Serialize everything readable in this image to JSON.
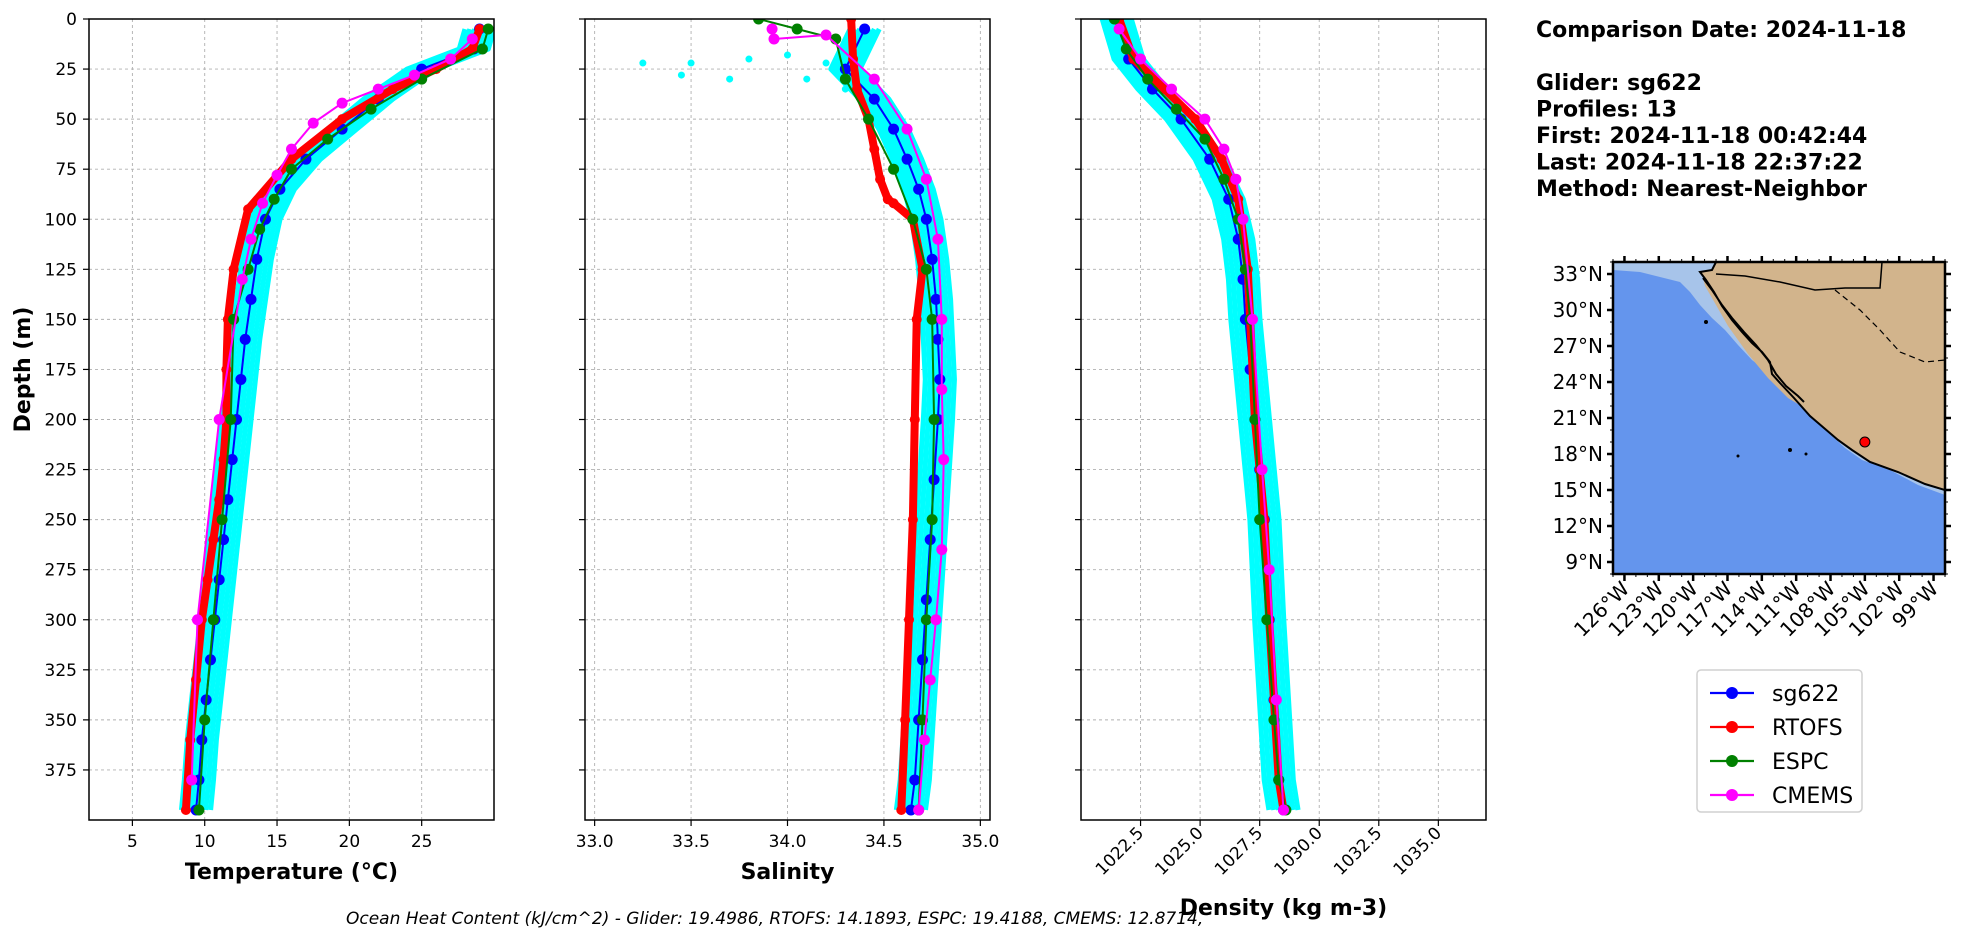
{
  "chart_data": [
    {
      "type": "line",
      "xlabel": "Temperature (°C)",
      "ylabel": "Depth (m)",
      "xlim": [
        2,
        30
      ],
      "ylim": [
        400,
        0
      ],
      "xticks": [
        5,
        10,
        15,
        20,
        25
      ],
      "yticks": [
        0,
        25,
        50,
        75,
        100,
        125,
        150,
        175,
        200,
        225,
        250,
        275,
        300,
        325,
        350,
        375
      ],
      "grid": true,
      "series": [
        {
          "name": "sg622",
          "color": "#0000ff",
          "x": [
            29.0,
            28.6,
            25.0,
            22.0,
            19.5,
            17.0,
            15.2,
            14.2,
            13.6,
            13.2,
            12.8,
            12.5,
            12.2,
            11.9,
            11.6,
            11.3,
            11.0,
            10.7,
            10.4,
            10.1,
            9.8,
            9.6,
            9.4
          ],
          "y": [
            5,
            15,
            25,
            40,
            55,
            70,
            85,
            100,
            120,
            140,
            160,
            180,
            200,
            220,
            240,
            260,
            280,
            300,
            320,
            340,
            360,
            380,
            395
          ]
        },
        {
          "name": "RTOFS",
          "color": "#ff0000",
          "x": [
            29.0,
            28.5,
            26.0,
            23.0,
            19.5,
            16.0,
            13.0,
            12.0,
            11.6,
            11.5,
            11.5,
            11.3,
            11.0,
            10.6,
            10.2,
            9.8,
            9.4,
            9.0,
            8.7
          ],
          "y": [
            5,
            15,
            25,
            35,
            50,
            70,
            95,
            125,
            150,
            175,
            200,
            220,
            240,
            260,
            280,
            300,
            330,
            360,
            395
          ]
        },
        {
          "name": "ESPC",
          "color": "#008000",
          "x": [
            29.6,
            29.2,
            25.0,
            21.5,
            18.5,
            16.0,
            14.8,
            13.8,
            13.0,
            12.0,
            11.8,
            11.2,
            10.6,
            10.0,
            9.6
          ],
          "y": [
            5,
            15,
            30,
            45,
            60,
            75,
            90,
            105,
            125,
            150,
            200,
            250,
            300,
            350,
            395
          ]
        },
        {
          "name": "CMEMS",
          "color": "#ff00ff",
          "x": [
            28.5,
            27.0,
            24.5,
            22.0,
            19.5,
            17.5,
            16.0,
            15.0,
            14.0,
            13.2,
            12.6,
            11.0,
            9.5,
            9.1
          ],
          "y": [
            10,
            20,
            28,
            35,
            42,
            52,
            65,
            78,
            92,
            110,
            130,
            200,
            300,
            380
          ]
        }
      ]
    },
    {
      "type": "line",
      "xlabel": "Salinity",
      "xlim": [
        32.95,
        35.05
      ],
      "ylim": [
        400,
        0
      ],
      "xticks": [
        33.0,
        33.5,
        34.0,
        34.5,
        35.0
      ],
      "xtick_labels": [
        "33.0",
        "33.5",
        "34.0",
        "34.5",
        "35.0"
      ],
      "grid": true,
      "series": [
        {
          "name": "sg622",
          "color": "#0000ff",
          "x": [
            34.4,
            34.3,
            34.45,
            34.55,
            34.62,
            34.68,
            34.72,
            34.75,
            34.77,
            34.78,
            34.79,
            34.78,
            34.76,
            34.74,
            34.72,
            34.7,
            34.68,
            34.66,
            34.64
          ],
          "y": [
            5,
            25,
            40,
            55,
            70,
            85,
            100,
            120,
            140,
            160,
            180,
            200,
            230,
            260,
            290,
            320,
            350,
            380,
            395
          ]
        },
        {
          "name": "RTOFS",
          "color": "#ff0000",
          "x": [
            34.33,
            34.34,
            34.36,
            34.42,
            34.45,
            34.48,
            34.52,
            34.55,
            34.65,
            34.7,
            34.67,
            34.66,
            34.65,
            34.63,
            34.61,
            34.59
          ],
          "y": [
            0,
            20,
            35,
            50,
            65,
            80,
            90,
            92,
            100,
            125,
            150,
            200,
            250,
            300,
            350,
            395
          ]
        },
        {
          "name": "ESPC",
          "color": "#008000",
          "x": [
            33.85,
            34.05,
            34.25,
            34.3,
            34.42,
            34.55,
            34.65,
            34.72,
            34.75,
            34.76,
            34.75,
            34.72,
            34.7,
            34.68
          ],
          "y": [
            0,
            5,
            10,
            30,
            50,
            75,
            100,
            125,
            150,
            200,
            250,
            300,
            350,
            395
          ]
        },
        {
          "name": "CMEMS",
          "color": "#ff00ff",
          "x": [
            33.92,
            33.93,
            34.2,
            34.45,
            34.62,
            34.72,
            34.78,
            34.8,
            34.8,
            34.81,
            34.8,
            34.77,
            34.74,
            34.71,
            34.68
          ],
          "y": [
            5,
            10,
            8,
            30,
            55,
            80,
            110,
            150,
            185,
            220,
            265,
            300,
            330,
            360,
            395
          ]
        }
      ]
    },
    {
      "type": "line",
      "xlabel": "Density (kg m-3)",
      "xlim": [
        1020.0,
        1037.0
      ],
      "ylim": [
        400,
        0
      ],
      "xticks": [
        1022.5,
        1025.0,
        1027.5,
        1030.0,
        1032.5,
        1035.0
      ],
      "xtick_labels": [
        "1022.5",
        "1025.0",
        "1027.5",
        "1030.0",
        "1032.5",
        "1035.0"
      ],
      "grid": true,
      "series": [
        {
          "name": "sg622",
          "color": "#0000ff",
          "x": [
            1021.5,
            1022.0,
            1023.0,
            1024.2,
            1025.4,
            1026.2,
            1026.6,
            1026.8,
            1026.9,
            1027.1,
            1027.3,
            1027.5,
            1027.7,
            1027.9,
            1028.1,
            1028.3,
            1028.5
          ],
          "y": [
            0,
            20,
            35,
            50,
            70,
            90,
            110,
            130,
            150,
            175,
            200,
            225,
            250,
            300,
            340,
            380,
            395
          ]
        },
        {
          "name": "RTOFS",
          "color": "#ff0000",
          "x": [
            1021.6,
            1022.2,
            1023.5,
            1024.8,
            1025.9,
            1026.6,
            1027.0,
            1027.1,
            1027.3,
            1027.5,
            1027.7,
            1027.9,
            1028.1,
            1028.3,
            1028.5
          ],
          "y": [
            0,
            20,
            35,
            50,
            70,
            90,
            125,
            150,
            200,
            225,
            250,
            300,
            340,
            380,
            395
          ]
        },
        {
          "name": "ESPC",
          "color": "#008000",
          "x": [
            1021.4,
            1021.9,
            1022.8,
            1024.0,
            1025.2,
            1026.0,
            1026.6,
            1026.9,
            1027.1,
            1027.3,
            1027.5,
            1027.8,
            1028.1,
            1028.3,
            1028.6
          ],
          "y": [
            0,
            15,
            30,
            45,
            60,
            80,
            100,
            125,
            150,
            200,
            250,
            300,
            350,
            380,
            395
          ]
        },
        {
          "name": "CMEMS",
          "color": "#ff00ff",
          "x": [
            1021.6,
            1022.5,
            1023.8,
            1025.2,
            1026.0,
            1026.5,
            1026.8,
            1027.2,
            1027.6,
            1027.9,
            1028.2,
            1028.5
          ],
          "y": [
            5,
            20,
            35,
            50,
            65,
            80,
            100,
            150,
            225,
            275,
            340,
            395
          ]
        }
      ]
    }
  ],
  "info": {
    "lines": [
      "Comparison Date: 2024-11-18",
      "",
      "Glider: sg622",
      "Profiles: 13",
      "First: 2024-11-18 00:42:44",
      "Last: 2024-11-18 22:37:22",
      "Method: Nearest-Neighbor"
    ]
  },
  "map": {
    "lat_labels": [
      "33°N",
      "30°N",
      "27°N",
      "24°N",
      "21°N",
      "18°N",
      "15°N",
      "12°N",
      "9°N"
    ],
    "lon_labels": [
      "126°W",
      "123°W",
      "120°W",
      "117°W",
      "114°W",
      "111°W",
      "108°W",
      "105°W",
      "102°W",
      "99°W"
    ],
    "lat_range": [
      8,
      34
    ],
    "lon_range": [
      -127,
      -98
    ],
    "glider_position": {
      "lat": 19.0,
      "lon": -105.0
    },
    "ocean_color": "#6495ed",
    "shelf_color": "#a7c4ea",
    "land_color": "#d2b48c"
  },
  "legend": {
    "items": [
      {
        "label": "sg622",
        "color": "#0000ff"
      },
      {
        "label": "RTOFS",
        "color": "#ff0000"
      },
      {
        "label": "ESPC",
        "color": "#008000"
      },
      {
        "label": "CMEMS",
        "color": "#ff00ff"
      }
    ]
  },
  "footer": {
    "text": "Ocean Heat Content (kJ/cm^2) - Glider: 19.4986,  RTOFS: 14.1893,  ESPC: 19.4188,  CMEMS: 12.8714,"
  },
  "colors": {
    "profile_cloud": "#00ffff",
    "grid": "#b0b0b0"
  }
}
